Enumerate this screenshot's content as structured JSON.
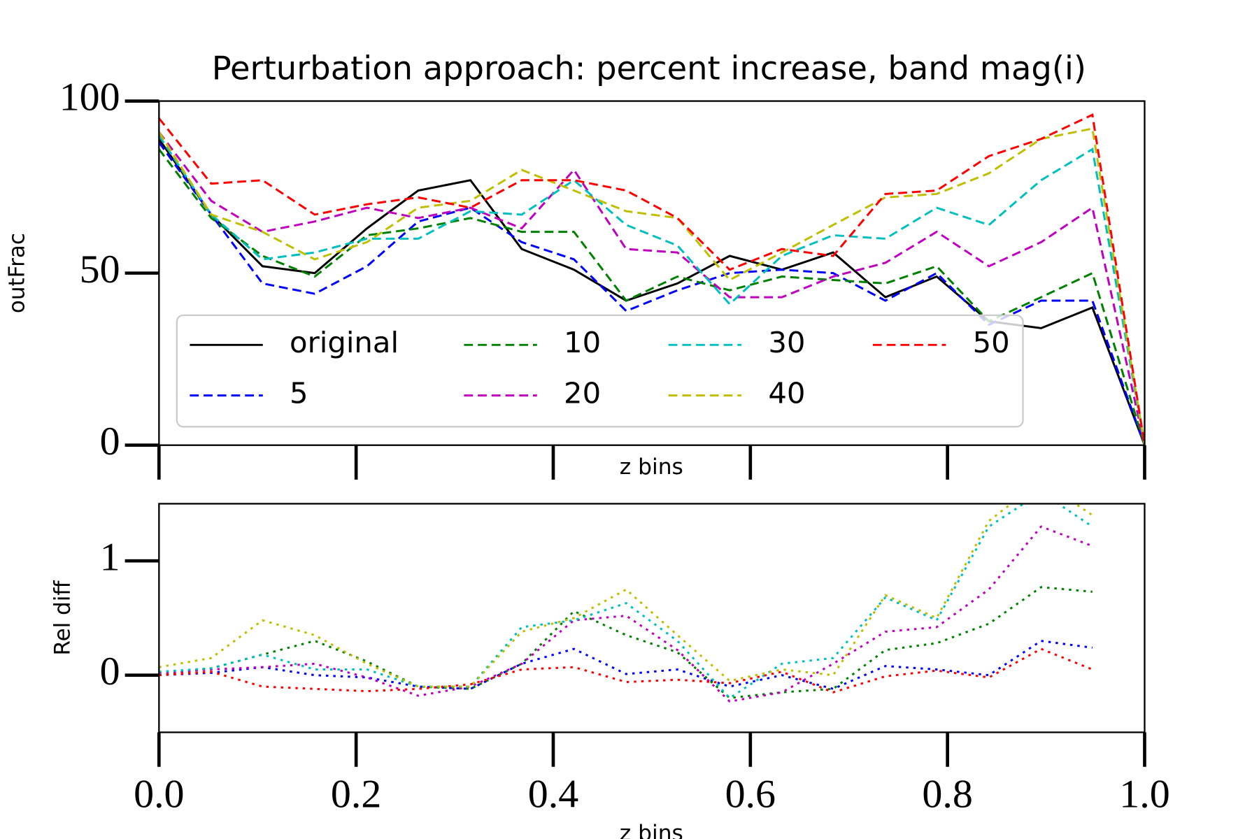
{
  "chart_data": [
    {
      "type": "line",
      "title": "Perturbation approach: percent increase, band mag(i)",
      "xlabel": "z bins",
      "ylabel": "outFrac",
      "x": [
        0,
        0.053,
        0.105,
        0.158,
        0.211,
        0.263,
        0.316,
        0.368,
        0.421,
        0.474,
        0.526,
        0.579,
        0.632,
        0.684,
        0.737,
        0.789,
        0.842,
        0.895,
        0.947,
        1.0
      ],
      "xlim": [
        0,
        1
      ],
      "xticks": [
        0,
        0.2,
        0.4,
        0.6,
        0.8,
        1.0
      ],
      "xticklabels": false,
      "ylim": [
        0,
        100
      ],
      "yticks": [
        0,
        50,
        100
      ],
      "legend": "lower left",
      "legend_columns": 4,
      "series": [
        {
          "name": "original",
          "color": "#000000",
          "linestyle": "solid",
          "values": [
            89,
            67,
            52,
            50,
            63,
            74,
            77,
            57,
            51,
            42,
            47,
            55,
            51,
            56,
            43,
            49,
            36,
            34,
            40,
            0
          ]
        },
        {
          "name": "5",
          "color": "#0000ff",
          "linestyle": "dashed",
          "values": [
            88,
            67,
            47,
            44,
            52,
            65,
            69,
            59,
            54,
            39,
            45,
            50,
            51,
            50,
            42,
            50,
            35,
            42,
            42,
            0
          ]
        },
        {
          "name": "10",
          "color": "#008000",
          "linestyle": "dashed",
          "values": [
            86,
            66,
            55,
            49,
            61,
            63,
            66,
            62,
            62,
            42,
            49,
            45,
            49,
            48,
            47,
            52,
            36,
            43,
            50,
            0
          ]
        },
        {
          "name": "20",
          "color": "#bf00bf",
          "linestyle": "dashed",
          "values": [
            91,
            71,
            62,
            65,
            69,
            66,
            69,
            63,
            80,
            57,
            56,
            43,
            43,
            49,
            53,
            62,
            52,
            59,
            69,
            0
          ]
        },
        {
          "name": "30",
          "color": "#00bfbf",
          "linestyle": "dashed",
          "values": [
            90,
            67,
            54,
            56,
            60,
            60,
            68,
            67,
            77,
            64,
            58,
            41,
            55,
            61,
            60,
            69,
            64,
            77,
            86,
            0
          ]
        },
        {
          "name": "40",
          "color": "#bfbf00",
          "linestyle": "dashed",
          "values": [
            91,
            67,
            62,
            54,
            59,
            69,
            71,
            80,
            74,
            68,
            66,
            48,
            56,
            64,
            72,
            73,
            79,
            89,
            92,
            0
          ]
        },
        {
          "name": "50",
          "color": "#ff0000",
          "linestyle": "dashed",
          "values": [
            95,
            76,
            77,
            67,
            70,
            72,
            69,
            77,
            77,
            74,
            66,
            51,
            57,
            55,
            73,
            74,
            84,
            89,
            96,
            0
          ]
        }
      ]
    },
    {
      "type": "line",
      "xlabel": "z bins",
      "ylabel": "Rel diff",
      "x": [
        0,
        0.053,
        0.105,
        0.158,
        0.211,
        0.263,
        0.316,
        0.368,
        0.421,
        0.474,
        0.526,
        0.579,
        0.632,
        0.684,
        0.737,
        0.789,
        0.842,
        0.895,
        0.947
      ],
      "xlim": [
        0,
        1
      ],
      "xticks": [
        {
          "value": 0,
          "label": "0.0"
        },
        0.2,
        0.4,
        0.6,
        0.8,
        {
          "value": 1,
          "label": "1.0"
        }
      ],
      "ylim": [
        -0.5,
        1.5
      ],
      "yticks": [
        0,
        1
      ],
      "series": [
        {
          "color": "#0000ff",
          "linestyle": "dotted",
          "values": [
            0,
            0.02,
            0.07,
            0,
            -0.02,
            -0.1,
            -0.12,
            0.1,
            0.23,
            0.01,
            0.05,
            -0.1,
            0,
            -0.12,
            0.08,
            0.05,
            0,
            0.3,
            0.24
          ]
        },
        {
          "color": "#008000",
          "linestyle": "dotted",
          "values": [
            0,
            0.06,
            0.18,
            0.3,
            0.12,
            -0.1,
            -0.12,
            0.1,
            0.56,
            0.35,
            0.2,
            -0.2,
            -0.15,
            -0.12,
            0.22,
            0.28,
            0.45,
            0.77,
            0.73
          ]
        },
        {
          "color": "#bf00bf",
          "linestyle": "dotted",
          "values": [
            0.02,
            0.05,
            0.07,
            0.1,
            -0.02,
            -0.18,
            -0.1,
            0.1,
            0.48,
            0.52,
            0.22,
            -0.23,
            -0.15,
            0.1,
            0.38,
            0.42,
            0.75,
            1.3,
            1.13
          ]
        },
        {
          "color": "#00bfbf",
          "linestyle": "dotted",
          "values": [
            0.03,
            0.06,
            0.18,
            0.05,
            0.05,
            -0.1,
            -0.1,
            0.42,
            0.48,
            0.63,
            0.3,
            -0.2,
            0.1,
            0.15,
            0.68,
            0.48,
            1.3,
            1.6,
            1.3
          ]
        },
        {
          "color": "#bfbf00",
          "linestyle": "dotted",
          "values": [
            0.07,
            0.15,
            0.48,
            0.35,
            0.1,
            -0.1,
            -0.1,
            0.38,
            0.5,
            0.75,
            0.35,
            -0.05,
            0.05,
            0,
            0.7,
            0.5,
            1.35,
            1.7,
            1.4
          ]
        },
        {
          "color": "#ff0000",
          "linestyle": "dotted",
          "values": [
            0,
            0.03,
            -0.1,
            -0.12,
            -0.14,
            -0.12,
            -0.08,
            0.05,
            0.07,
            -0.06,
            -0.04,
            -0.07,
            0.03,
            -0.15,
            -0.01,
            0.04,
            -0.02,
            0.23,
            0.05
          ]
        }
      ]
    }
  ]
}
